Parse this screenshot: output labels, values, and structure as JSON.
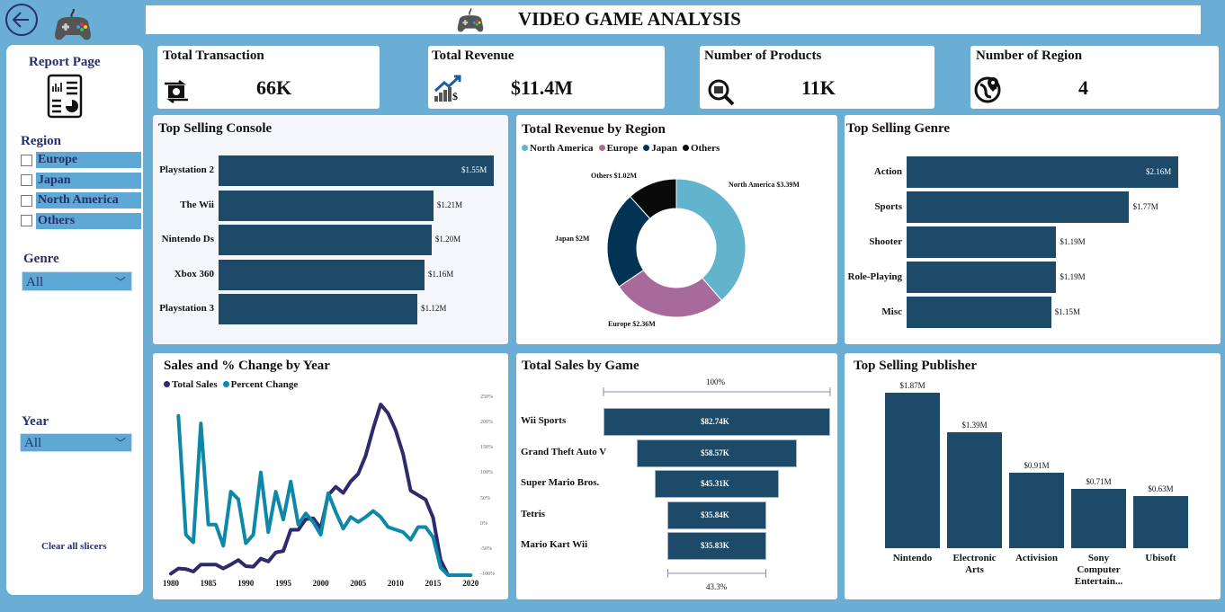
{
  "header": {
    "title": "VIDEO GAME ANALYSIS",
    "back_icon": "back-arrow-icon",
    "logo_icon": "gamepad-icon"
  },
  "sidebar": {
    "report_page_label": "Report Page",
    "region": {
      "title": "Region",
      "items": [
        "Europe",
        "Japan",
        "North America",
        "Others"
      ]
    },
    "genre": {
      "title": "Genre",
      "value": "All"
    },
    "year": {
      "title": "Year",
      "value": "All"
    },
    "clear_label": "Clear all slicers"
  },
  "kpis": [
    {
      "title": "Total Transaction",
      "value": "66K",
      "icon": "exchange-icon"
    },
    {
      "title": "Total Revenue",
      "value": "$11.4M",
      "icon": "revenue-growth-icon"
    },
    {
      "title": "Number of Products",
      "value": "11K",
      "icon": "product-search-icon"
    },
    {
      "title": "Number of Region",
      "value": "4",
      "icon": "globe-pin-icon"
    }
  ],
  "colors": {
    "bar": "#1d4a69",
    "north_america": "#62b4cc",
    "europe": "#a86a9a",
    "japan": "#033354",
    "others": "#0a0a0a",
    "total_sales": "#2e2a6b",
    "percent_change": "#0e88a8",
    "background": "#6aaed6"
  },
  "chart_data": [
    {
      "id": "console",
      "type": "bar",
      "orientation": "horizontal",
      "title": "Top Selling Console",
      "categories": [
        "Playstation 2",
        "The Wii",
        "Nintendo Ds",
        "Xbox 360",
        "Playstation 3"
      ],
      "values": [
        1.55,
        1.21,
        1.2,
        1.16,
        1.12
      ],
      "labels": [
        "$1.55M",
        "$1.21M",
        "$1.20M",
        "$1.16M",
        "$1.12M"
      ],
      "unit": "$M"
    },
    {
      "id": "region",
      "type": "pie",
      "variant": "donut",
      "title": "Total Revenue by Region",
      "categories": [
        "North America",
        "Europe",
        "Japan",
        "Others"
      ],
      "values": [
        3.39,
        2.36,
        2.0,
        1.02
      ],
      "labels": [
        "North America $3.39M",
        "Europe $2.36M",
        "Japan $2M",
        "Others $1.02M"
      ],
      "legend": "top-left"
    },
    {
      "id": "genre",
      "type": "bar",
      "orientation": "horizontal",
      "title": "Top Selling Genre",
      "categories": [
        "Action",
        "Sports",
        "Shooter",
        "Role-Playing",
        "Misc"
      ],
      "values": [
        2.16,
        1.77,
        1.19,
        1.19,
        1.15
      ],
      "labels": [
        "$2.16M",
        "$1.77M",
        "$1.19M",
        "$1.19M",
        "$1.15M"
      ],
      "unit": "$M"
    },
    {
      "id": "year",
      "type": "line",
      "title": "Sales and % Change by Year",
      "legend": "top-left",
      "x": [
        1980,
        1981,
        1982,
        1983,
        1984,
        1985,
        1986,
        1987,
        1988,
        1989,
        1990,
        1991,
        1992,
        1993,
        1994,
        1995,
        1996,
        1997,
        1998,
        1999,
        2000,
        2001,
        2002,
        2003,
        2004,
        2005,
        2006,
        2007,
        2008,
        2009,
        2010,
        2011,
        2012,
        2013,
        2014,
        2015,
        2016,
        2017,
        2018,
        2019,
        2020
      ],
      "x_ticks": [
        "1980",
        "1985",
        "1990",
        "1995",
        "2000",
        "2005",
        "2010",
        "2015",
        "2020"
      ],
      "y2_ticks": [
        "250%",
        "200%",
        "150%",
        "100%",
        "50%",
        "0%",
        "-50%",
        "-100%"
      ],
      "y2lim": [
        -100,
        250
      ],
      "series": [
        {
          "name": "Total Sales",
          "axis": "hidden",
          "values": [
            8,
            37,
            34,
            20,
            59,
            59,
            59,
            37,
            59,
            84,
            50,
            47,
            92,
            76,
            126,
            134,
            252,
            252,
            311,
            316,
            260,
            445,
            491,
            457,
            521,
            563,
            664,
            815,
            949,
            899,
            806,
            672,
            470,
            445,
            420,
            319,
            84,
            0,
            0,
            0,
            0
          ]
        },
        {
          "name": "Percent Change",
          "axis": "right",
          "values": [
            null,
            215,
            -20,
            -35,
            200,
            0,
            0,
            -42,
            65,
            50,
            -37,
            -20,
            103,
            -15,
            65,
            10,
            85,
            0,
            22,
            5,
            -20,
            62,
            25,
            -8,
            15,
            5,
            15,
            27,
            15,
            -5,
            -10,
            -15,
            -30,
            -5,
            -5,
            -25,
            -85,
            -100,
            -100,
            -100,
            -100
          ]
        }
      ]
    },
    {
      "id": "game",
      "type": "bar",
      "variant": "funnel",
      "title": "Total Sales by Game",
      "categories": [
        "Wii Sports",
        "Grand Theft Auto V",
        "Super Mario Bros.",
        "Tetris",
        "Mario Kart Wii"
      ],
      "values": [
        82.74,
        58.57,
        45.31,
        35.84,
        35.83
      ],
      "labels": [
        "$82.74K",
        "$58.57K",
        "$45.31K",
        "$35.84K",
        "$35.83K"
      ],
      "top_annotation": "100%",
      "bottom_annotation": "43.3%"
    },
    {
      "id": "publisher",
      "type": "bar",
      "orientation": "vertical",
      "title": "Top Selling Publisher",
      "categories": [
        "Nintendo",
        "Electronic Arts",
        "Activision",
        "Sony Computer Entertain...",
        "Ubisoft"
      ],
      "values": [
        1.87,
        1.39,
        0.91,
        0.71,
        0.63
      ],
      "labels": [
        "$1.87M",
        "$1.39M",
        "$0.91M",
        "$0.71M",
        "$0.63M"
      ]
    }
  ]
}
